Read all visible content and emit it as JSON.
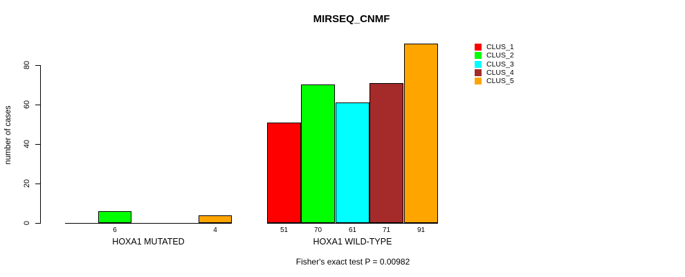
{
  "chart_data": {
    "type": "bar",
    "title": "MIRSEQ_CNMF",
    "xlabel": "",
    "ylabel": "number of cases",
    "categories": [
      "HOXA1 MUTATED",
      "HOXA1 WILD-TYPE"
    ],
    "series": [
      {
        "name": "CLUS_1",
        "color": "#FF0000",
        "values": [
          0,
          51
        ]
      },
      {
        "name": "CLUS_2",
        "color": "#00FF00",
        "values": [
          6,
          70
        ]
      },
      {
        "name": "CLUS_3",
        "color": "#00FFFF",
        "values": [
          0,
          61
        ]
      },
      {
        "name": "CLUS_4",
        "color": "#A52A2A",
        "values": [
          0,
          71
        ]
      },
      {
        "name": "CLUS_5",
        "color": "#FFA500",
        "values": [
          4,
          91
        ]
      }
    ],
    "bar_value_labels": {
      "HOXA1 MUTATED": [
        "",
        "6",
        "",
        "",
        "4"
      ],
      "HOXA1 WILD-TYPE": [
        "51",
        "70",
        "61",
        "71",
        "91"
      ]
    },
    "yticks": [
      0,
      20,
      40,
      60,
      80
    ],
    "ylim": [
      0,
      91
    ],
    "grid": false,
    "legend_position": "right",
    "legend_entries": [
      "CLUS_1",
      "CLUS_2",
      "CLUS_3",
      "CLUS_4",
      "CLUS_5"
    ],
    "annotation": "Fisher's exact test P = 0.00982"
  },
  "colors": {
    "background": "#FFFFFF",
    "axis": "#000000",
    "text": "#000000"
  }
}
